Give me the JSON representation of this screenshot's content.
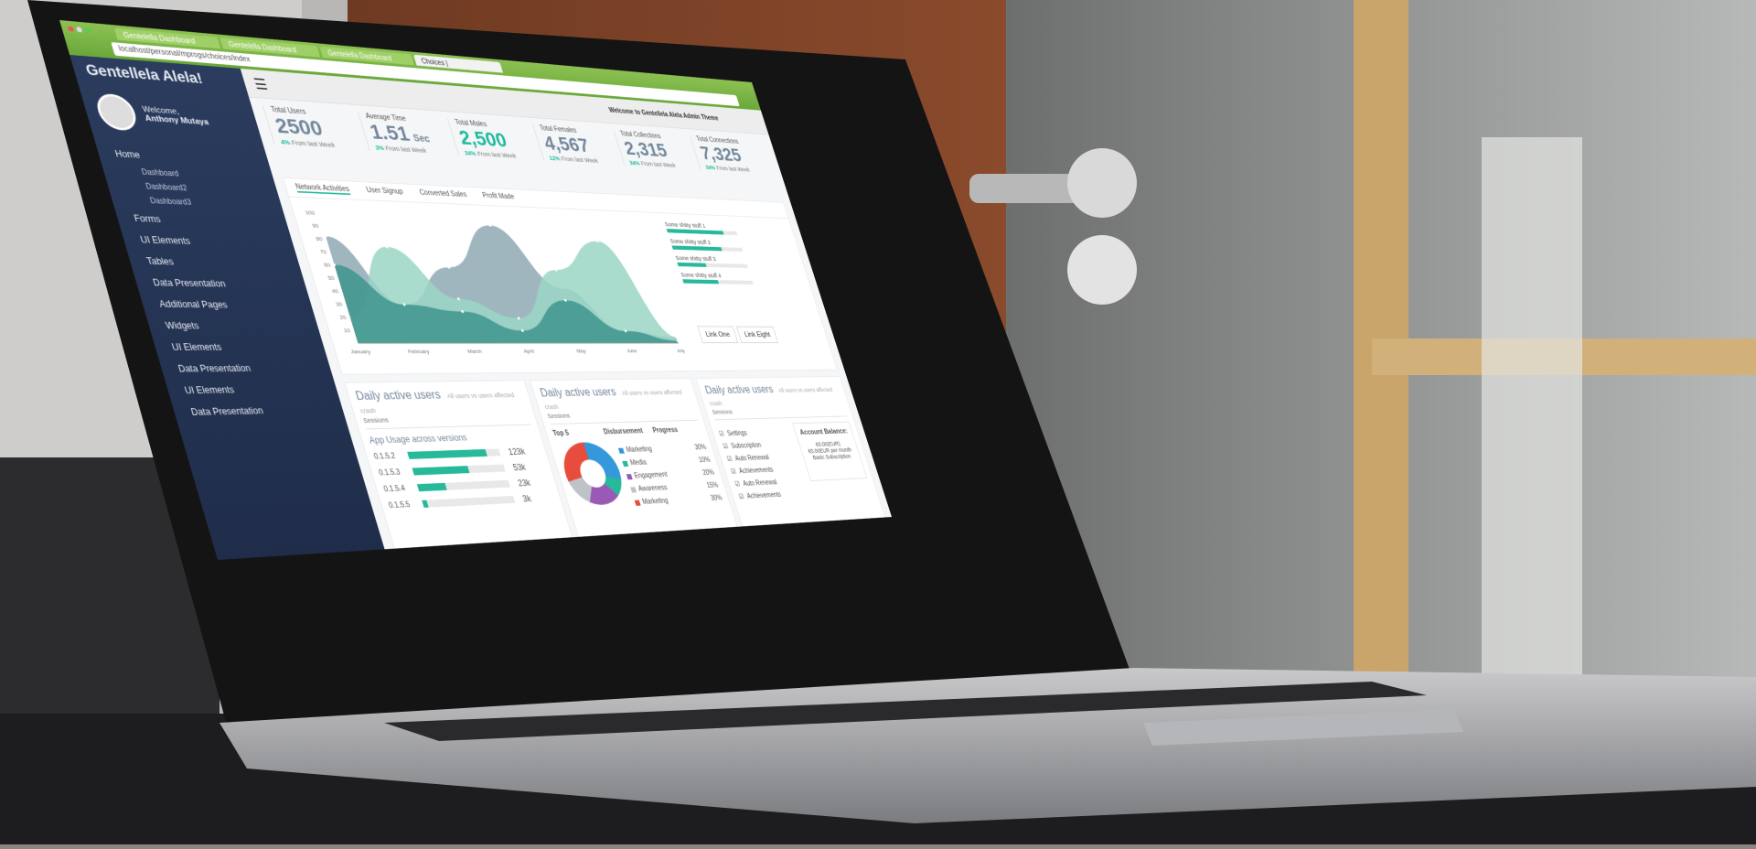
{
  "browser": {
    "tabs": [
      "Gentelella Dashboard",
      "Gentelella Dashboard",
      "Gentelella Dashboard",
      "Choices |"
    ],
    "url": "localhost/personal/mprogs/choices/index"
  },
  "sidebar": {
    "brand": "Gentellela Alela!",
    "welcome": "Welcome,",
    "user": "Anthony Mutaya",
    "items": [
      {
        "label": "Home"
      },
      {
        "label": "Dashboard",
        "sub": true
      },
      {
        "label": "Dashboard2",
        "sub": true
      },
      {
        "label": "Dashboard3",
        "sub": true
      },
      {
        "label": "Forms"
      },
      {
        "label": "UI Elements"
      },
      {
        "label": "Tables"
      },
      {
        "label": "Data Presentation"
      },
      {
        "label": "Additional Pages"
      },
      {
        "label": "Widgets"
      },
      {
        "label": "UI Elements"
      },
      {
        "label": "Data Presentation"
      },
      {
        "label": "UI Elements"
      },
      {
        "label": "Data Presentation"
      }
    ]
  },
  "header": {
    "menu_icon": "hamburger-icon",
    "welcome": "Welcome to Gentellela Alela Admin Theme"
  },
  "stats": [
    {
      "label": "Total Users",
      "value": "2500",
      "pct": "4%",
      "note": "From last Week"
    },
    {
      "label": "Average Time",
      "value": "1.51",
      "unit": "Sec",
      "pct": "3%",
      "note": "From last Week"
    },
    {
      "label": "Total Males",
      "value": "2,500",
      "pct": "34%",
      "note": "From last Week",
      "green": true
    },
    {
      "label": "Total Females",
      "value": "4,567",
      "pct": "12%",
      "note": "From last Week"
    },
    {
      "label": "Total Collections",
      "value": "2,315",
      "pct": "34%",
      "note": "From last Week"
    },
    {
      "label": "Total Connections",
      "value": "7,325",
      "pct": "34%",
      "note": "From last Week"
    }
  ],
  "chart_tabs": [
    "Network Activities",
    "User Signup",
    "Converted Sales",
    "Profit Made"
  ],
  "chart_data": {
    "type": "area",
    "categories": [
      "January",
      "February",
      "March",
      "April",
      "May",
      "June",
      "July"
    ],
    "ylim": [
      0,
      100
    ],
    "yticks": [
      10,
      20,
      30,
      40,
      50,
      60,
      70,
      80,
      90,
      100
    ],
    "series": [
      {
        "values": [
          82,
          30,
          60,
          95,
          45,
          10,
          5
        ],
        "color": "#8fa9b4"
      },
      {
        "values": [
          20,
          75,
          35,
          20,
          60,
          85,
          5
        ],
        "color": "#9bd6c6"
      },
      {
        "values": [
          60,
          30,
          25,
          10,
          35,
          10,
          2
        ],
        "color": "#3e958d"
      }
    ]
  },
  "progress": [
    {
      "label": "Some shitty stuff 1",
      "value": 80
    },
    {
      "label": "Some shitty stuff 2",
      "value": 70
    },
    {
      "label": "Some shitty stuff 3",
      "value": 40
    },
    {
      "label": "Some shitty stuff 4",
      "value": 50
    }
  ],
  "links": [
    "Link One",
    "Link Eight"
  ],
  "panels": {
    "title": "Daily active users",
    "subtitle": "All users vs users affected crash",
    "sessions": "Sessions",
    "usage": {
      "title": "App Usage across versions",
      "rows": [
        {
          "v": "0.1.5.2",
          "n": "123k",
          "p": 85
        },
        {
          "v": "0.1.5.3",
          "n": "53k",
          "p": 60
        },
        {
          "v": "0.1.5.4",
          "n": "23k",
          "p": 30
        },
        {
          "v": "0.1.5.5",
          "n": "3k",
          "p": 5
        }
      ]
    },
    "top5": {
      "h": [
        "Top 5",
        "Disbursement",
        "Progress"
      ],
      "rows": [
        {
          "l": "Marketing",
          "p": "30%",
          "c": "#3498db"
        },
        {
          "l": "Media",
          "p": "10%",
          "c": "#26b99a"
        },
        {
          "l": "Engagement",
          "p": "20%",
          "c": "#9b59b6"
        },
        {
          "l": "Awareness",
          "p": "15%",
          "c": "#bdc3c7"
        },
        {
          "l": "Marketing",
          "p": "30%",
          "c": "#e74c3c"
        }
      ]
    },
    "settings": {
      "items": [
        "Settings",
        "Subscription",
        "Auto Renewal",
        "Achievements",
        "Auto Renewal",
        "Achievements"
      ],
      "balance_title": "Account Balance:",
      "balance": "€0.00(EUR)",
      "monthly": "€0.00EUR per month",
      "plan": "Basic Subscription"
    }
  }
}
